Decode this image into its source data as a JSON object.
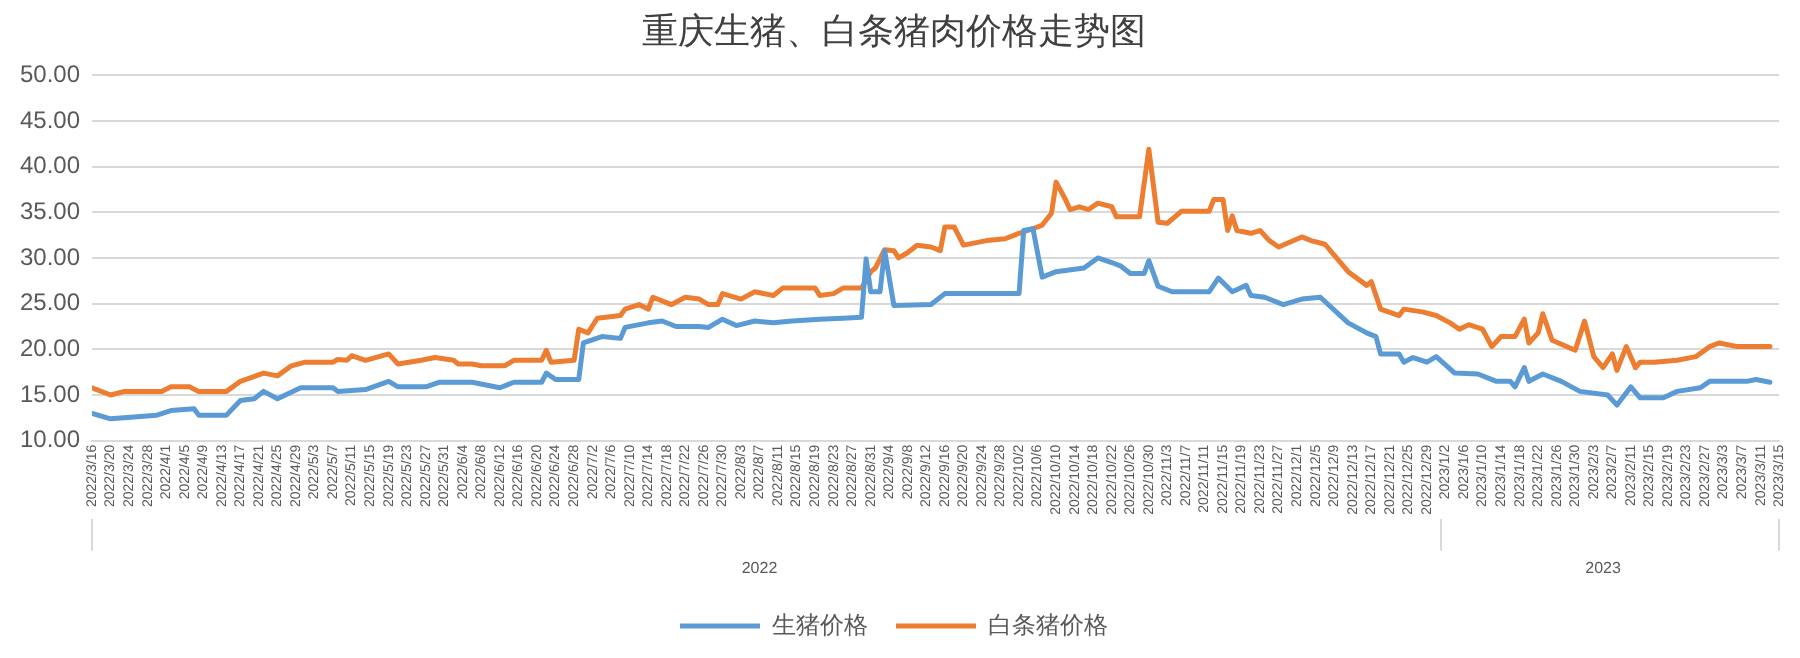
{
  "chart_data": {
    "type": "line",
    "title": "重庆生猪、白条猪肉价格走势图",
    "series": [
      {
        "name": "生猪价格",
        "color": "#5b9bd5",
        "x": [
          "2022-03-16",
          "2022-03-20",
          "2022-03-30",
          "2022-04-02",
          "2022-04-07",
          "2022-04-08",
          "2022-04-14",
          "2022-04-17",
          "2022-04-20",
          "2022-04-22",
          "2022-04-25",
          "2022-04-30",
          "2022-05-07",
          "2022-05-08",
          "2022-05-14",
          "2022-05-19",
          "2022-05-21",
          "2022-05-27",
          "2022-05-30",
          "2022-06-06",
          "2022-06-12",
          "2022-06-15",
          "2022-06-21",
          "2022-06-22",
          "2022-06-24",
          "2022-06-29",
          "2022-06-30",
          "2022-07-04",
          "2022-07-08",
          "2022-07-09",
          "2022-07-14",
          "2022-07-17",
          "2022-07-20",
          "2022-07-25",
          "2022-07-27",
          "2022-07-30",
          "2022-08-02",
          "2022-08-06",
          "2022-08-10",
          "2022-08-14",
          "2022-08-20",
          "2022-08-25",
          "2022-08-29",
          "2022-08-30",
          "2022-08-31",
          "2022-09-02",
          "2022-09-03",
          "2022-09-05",
          "2022-09-13",
          "2022-09-16",
          "2022-10-02",
          "2022-10-03",
          "2022-10-05",
          "2022-10-07",
          "2022-10-10",
          "2022-10-16",
          "2022-10-19",
          "2022-10-22",
          "2022-10-24",
          "2022-10-26",
          "2022-10-29",
          "2022-10-30",
          "2022-11-01",
          "2022-11-04",
          "2022-11-12",
          "2022-11-14",
          "2022-11-17",
          "2022-11-20",
          "2022-11-21",
          "2022-11-24",
          "2022-11-28",
          "2022-12-02",
          "2022-12-06",
          "2022-12-12",
          "2022-12-16",
          "2022-12-18",
          "2022-12-19",
          "2022-12-23",
          "2022-12-24",
          "2022-12-26",
          "2022-12-29",
          "2022-12-31",
          "2023-01-04",
          "2023-01-09",
          "2023-01-13",
          "2023-01-16",
          "2023-01-17",
          "2023-01-19",
          "2023-01-20",
          "2023-01-23",
          "2023-01-27",
          "2023-01-31",
          "2023-02-06",
          "2023-02-08",
          "2023-02-11",
          "2023-02-13",
          "2023-02-18",
          "2023-02-21",
          "2023-02-26",
          "2023-02-28",
          "2023-03-08",
          "2023-03-10",
          "2023-03-13"
        ],
        "values": [
          13.0,
          12.4,
          12.8,
          13.3,
          13.5,
          12.8,
          12.8,
          14.4,
          14.6,
          15.4,
          14.6,
          15.8,
          15.8,
          15.4,
          15.6,
          16.5,
          15.9,
          15.9,
          16.4,
          16.4,
          15.8,
          16.4,
          16.4,
          17.4,
          16.7,
          16.7,
          20.7,
          21.4,
          21.2,
          22.4,
          22.9,
          23.1,
          22.5,
          22.5,
          22.4,
          23.3,
          22.6,
          23.1,
          22.9,
          23.1,
          23.3,
          23.4,
          23.5,
          29.9,
          26.3,
          26.3,
          30.8,
          24.8,
          24.9,
          26.1,
          26.1,
          33.0,
          33.2,
          27.9,
          28.5,
          28.9,
          30.0,
          29.5,
          29.1,
          28.3,
          28.3,
          29.7,
          26.9,
          26.3,
          26.3,
          27.8,
          26.3,
          27.0,
          25.9,
          25.7,
          24.9,
          25.5,
          25.7,
          22.9,
          21.8,
          21.4,
          19.5,
          19.5,
          18.6,
          19.1,
          18.6,
          19.2,
          17.4,
          17.3,
          16.5,
          16.5,
          15.9,
          18.0,
          16.5,
          17.3,
          16.5,
          15.4,
          15.0,
          13.9,
          15.9,
          14.7,
          14.7,
          15.4,
          15.8,
          16.5,
          16.5,
          16.7,
          16.4
        ]
      },
      {
        "name": "白条猪价格",
        "color": "#ed7d31",
        "x": [
          "2022-03-16",
          "2022-03-20",
          "2022-03-23",
          "2022-03-31",
          "2022-04-02",
          "2022-04-06",
          "2022-04-08",
          "2022-04-14",
          "2022-04-17",
          "2022-04-22",
          "2022-04-25",
          "2022-04-28",
          "2022-05-01",
          "2022-05-07",
          "2022-05-08",
          "2022-05-10",
          "2022-05-11",
          "2022-05-14",
          "2022-05-19",
          "2022-05-21",
          "2022-05-26",
          "2022-05-29",
          "2022-06-02",
          "2022-06-03",
          "2022-06-06",
          "2022-06-08",
          "2022-06-13",
          "2022-06-15",
          "2022-06-21",
          "2022-06-22",
          "2022-06-23",
          "2022-06-28",
          "2022-06-29",
          "2022-07-01",
          "2022-07-03",
          "2022-07-08",
          "2022-07-09",
          "2022-07-12",
          "2022-07-14",
          "2022-07-15",
          "2022-07-19",
          "2022-07-22",
          "2022-07-25",
          "2022-07-27",
          "2022-07-29",
          "2022-07-30",
          "2022-08-03",
          "2022-08-06",
          "2022-08-10",
          "2022-08-12",
          "2022-08-19",
          "2022-08-20",
          "2022-08-23",
          "2022-08-25",
          "2022-08-29",
          "2022-08-31",
          "2022-09-01",
          "2022-09-03",
          "2022-09-05",
          "2022-09-06",
          "2022-09-08",
          "2022-09-10",
          "2022-09-13",
          "2022-09-15",
          "2022-09-16",
          "2022-09-18",
          "2022-09-20",
          "2022-09-25",
          "2022-09-29",
          "2022-10-02",
          "2022-10-05",
          "2022-10-07",
          "2022-10-09",
          "2022-10-10",
          "2022-10-12",
          "2022-10-13",
          "2022-10-15",
          "2022-10-17",
          "2022-10-19",
          "2022-10-22",
          "2022-10-23",
          "2022-10-28",
          "2022-10-30",
          "2022-11-01",
          "2022-11-03",
          "2022-11-06",
          "2022-11-12",
          "2022-11-13",
          "2022-11-15",
          "2022-11-16",
          "2022-11-17",
          "2022-11-18",
          "2022-11-21",
          "2022-11-23",
          "2022-11-25",
          "2022-11-27",
          "2022-12-02",
          "2022-12-04",
          "2022-12-07",
          "2022-12-12",
          "2022-12-16",
          "2022-12-17",
          "2022-12-19",
          "2022-12-23",
          "2022-12-24",
          "2022-12-28",
          "2022-12-31",
          "2023-01-03",
          "2023-01-05",
          "2023-01-07",
          "2023-01-10",
          "2023-01-12",
          "2023-01-14",
          "2023-01-17",
          "2023-01-19",
          "2023-01-20",
          "2023-01-22",
          "2023-01-23",
          "2023-01-25",
          "2023-01-30",
          "2023-02-01",
          "2023-02-03",
          "2023-02-05",
          "2023-02-07",
          "2023-02-08",
          "2023-02-10",
          "2023-02-12",
          "2023-02-13",
          "2023-02-16",
          "2023-02-21",
          "2023-02-25",
          "2023-02-28",
          "2023-03-02",
          "2023-03-06",
          "2023-03-11",
          "2023-03-13"
        ],
        "values": [
          15.8,
          15.0,
          15.4,
          15.4,
          15.9,
          15.9,
          15.4,
          15.4,
          16.5,
          17.4,
          17.1,
          18.2,
          18.6,
          18.6,
          18.9,
          18.8,
          19.3,
          18.8,
          19.5,
          18.4,
          18.8,
          19.1,
          18.8,
          18.4,
          18.4,
          18.2,
          18.2,
          18.8,
          18.8,
          19.9,
          18.6,
          18.8,
          22.2,
          21.8,
          23.4,
          23.7,
          24.4,
          24.9,
          24.4,
          25.7,
          24.9,
          25.7,
          25.5,
          24.9,
          24.9,
          26.1,
          25.5,
          26.3,
          25.9,
          26.7,
          26.7,
          25.9,
          26.1,
          26.7,
          26.7,
          28.5,
          28.9,
          30.9,
          30.8,
          30.0,
          30.6,
          31.4,
          31.2,
          30.8,
          33.4,
          33.4,
          31.4,
          31.9,
          32.1,
          32.7,
          33.2,
          33.6,
          34.9,
          38.3,
          36.4,
          35.3,
          35.6,
          35.3,
          36.0,
          35.6,
          34.5,
          34.5,
          41.9,
          33.9,
          33.8,
          35.1,
          35.1,
          36.4,
          36.4,
          33.0,
          34.6,
          33.0,
          32.7,
          33.0,
          31.9,
          31.2,
          32.3,
          31.9,
          31.5,
          28.5,
          27.0,
          27.4,
          24.4,
          23.7,
          24.4,
          24.1,
          23.7,
          22.9,
          22.2,
          22.7,
          22.2,
          20.3,
          21.4,
          21.4,
          23.3,
          20.7,
          21.8,
          23.9,
          21.0,
          19.9,
          23.1,
          19.2,
          18.0,
          19.5,
          17.7,
          20.3,
          18.0,
          18.6,
          18.6,
          18.8,
          19.2,
          20.3,
          20.7,
          20.3,
          20.3,
          20.3
        ]
      }
    ],
    "xlim": [
      "2022-03-16",
      "2023-03-15"
    ],
    "xticks": [
      {
        "value": "2022-03-16",
        "label": "2022/3/16"
      },
      {
        "value": "2022-03-20",
        "label": "2022/3/20"
      },
      {
        "value": "2022-03-24",
        "label": "2022/3/24"
      },
      {
        "value": "2022-03-28",
        "label": "2022/3/28"
      },
      {
        "value": "2022-04-01",
        "label": "2022/4/1"
      },
      {
        "value": "2022-04-05",
        "label": "2022/4/5"
      },
      {
        "value": "2022-04-09",
        "label": "2022/4/9"
      },
      {
        "value": "2022-04-13",
        "label": "2022/4/13"
      },
      {
        "value": "2022-04-17",
        "label": "2022/4/17"
      },
      {
        "value": "2022-04-21",
        "label": "2022/4/21"
      },
      {
        "value": "2022-04-25",
        "label": "2022/4/25"
      },
      {
        "value": "2022-04-29",
        "label": "2022/4/29"
      },
      {
        "value": "2022-05-03",
        "label": "2022/5/3"
      },
      {
        "value": "2022-05-07",
        "label": "2022/5/7"
      },
      {
        "value": "2022-05-11",
        "label": "2022/5/11"
      },
      {
        "value": "2022-05-15",
        "label": "2022/5/15"
      },
      {
        "value": "2022-05-19",
        "label": "2022/5/19"
      },
      {
        "value": "2022-05-23",
        "label": "2022/5/23"
      },
      {
        "value": "2022-05-27",
        "label": "2022/5/27"
      },
      {
        "value": "2022-05-31",
        "label": "2022/5/31"
      },
      {
        "value": "2022-06-04",
        "label": "2022/6/4"
      },
      {
        "value": "2022-06-08",
        "label": "2022/6/8"
      },
      {
        "value": "2022-06-12",
        "label": "2022/6/12"
      },
      {
        "value": "2022-06-16",
        "label": "2022/6/16"
      },
      {
        "value": "2022-06-20",
        "label": "2022/6/20"
      },
      {
        "value": "2022-06-24",
        "label": "2022/6/24"
      },
      {
        "value": "2022-06-28",
        "label": "2022/6/28"
      },
      {
        "value": "2022-07-02",
        "label": "2022/7/2"
      },
      {
        "value": "2022-07-06",
        "label": "2022/7/6"
      },
      {
        "value": "2022-07-10",
        "label": "2022/7/10"
      },
      {
        "value": "2022-07-14",
        "label": "2022/7/14"
      },
      {
        "value": "2022-07-18",
        "label": "2022/7/18"
      },
      {
        "value": "2022-07-22",
        "label": "2022/7/22"
      },
      {
        "value": "2022-07-26",
        "label": "2022/7/26"
      },
      {
        "value": "2022-07-30",
        "label": "2022/7/30"
      },
      {
        "value": "2022-08-03",
        "label": "2022/8/3"
      },
      {
        "value": "2022-08-07",
        "label": "2022/8/7"
      },
      {
        "value": "2022-08-11",
        "label": "2022/8/11"
      },
      {
        "value": "2022-08-15",
        "label": "2022/8/15"
      },
      {
        "value": "2022-08-19",
        "label": "2022/8/19"
      },
      {
        "value": "2022-08-23",
        "label": "2022/8/23"
      },
      {
        "value": "2022-08-27",
        "label": "2022/8/27"
      },
      {
        "value": "2022-08-31",
        "label": "2022/8/31"
      },
      {
        "value": "2022-09-04",
        "label": "2022/9/4"
      },
      {
        "value": "2022-09-08",
        "label": "2022/9/8"
      },
      {
        "value": "2022-09-12",
        "label": "2022/9/12"
      },
      {
        "value": "2022-09-16",
        "label": "2022/9/16"
      },
      {
        "value": "2022-09-20",
        "label": "2022/9/20"
      },
      {
        "value": "2022-09-24",
        "label": "2022/9/24"
      },
      {
        "value": "2022-09-28",
        "label": "2022/9/28"
      },
      {
        "value": "2022-10-02",
        "label": "2022/10/2"
      },
      {
        "value": "2022-10-06",
        "label": "2022/10/6"
      },
      {
        "value": "2022-10-10",
        "label": "2022/10/10"
      },
      {
        "value": "2022-10-14",
        "label": "2022/10/14"
      },
      {
        "value": "2022-10-18",
        "label": "2022/10/18"
      },
      {
        "value": "2022-10-22",
        "label": "2022/10/22"
      },
      {
        "value": "2022-10-26",
        "label": "2022/10/26"
      },
      {
        "value": "2022-10-30",
        "label": "2022/10/30"
      },
      {
        "value": "2022-11-03",
        "label": "2022/11/3"
      },
      {
        "value": "2022-11-07",
        "label": "2022/11/7"
      },
      {
        "value": "2022-11-11",
        "label": "2022/11/11"
      },
      {
        "value": "2022-11-15",
        "label": "2022/11/15"
      },
      {
        "value": "2022-11-19",
        "label": "2022/11/19"
      },
      {
        "value": "2022-11-23",
        "label": "2022/11/23"
      },
      {
        "value": "2022-11-27",
        "label": "2022/11/27"
      },
      {
        "value": "2022-12-01",
        "label": "2022/12/1"
      },
      {
        "value": "2022-12-05",
        "label": "2022/12/5"
      },
      {
        "value": "2022-12-09",
        "label": "2022/12/9"
      },
      {
        "value": "2022-12-13",
        "label": "2022/12/13"
      },
      {
        "value": "2022-12-17",
        "label": "2022/12/17"
      },
      {
        "value": "2022-12-21",
        "label": "2022/12/21"
      },
      {
        "value": "2022-12-25",
        "label": "2022/12/25"
      },
      {
        "value": "2022-12-29",
        "label": "2022/12/29"
      },
      {
        "value": "2023-01-02",
        "label": "2023/1/2"
      },
      {
        "value": "2023-01-06",
        "label": "2023/1/6"
      },
      {
        "value": "2023-01-10",
        "label": "2023/1/10"
      },
      {
        "value": "2023-01-14",
        "label": "2023/1/14"
      },
      {
        "value": "2023-01-18",
        "label": "2023/1/18"
      },
      {
        "value": "2023-01-22",
        "label": "2023/1/22"
      },
      {
        "value": "2023-01-26",
        "label": "2023/1/26"
      },
      {
        "value": "2023-01-30",
        "label": "2023/1/30"
      },
      {
        "value": "2023-02-03",
        "label": "2023/2/3"
      },
      {
        "value": "2023-02-07",
        "label": "2023/2/7"
      },
      {
        "value": "2023-02-11",
        "label": "2023/2/11"
      },
      {
        "value": "2023-02-15",
        "label": "2023/2/15"
      },
      {
        "value": "2023-02-19",
        "label": "2023/2/19"
      },
      {
        "value": "2023-02-23",
        "label": "2023/2/23"
      },
      {
        "value": "2023-02-27",
        "label": "2023/2/27"
      },
      {
        "value": "2023-03-03",
        "label": "2023/3/3"
      },
      {
        "value": "2023-03-07",
        "label": "2023/3/7"
      },
      {
        "value": "2023-03-11",
        "label": "2023/3/11"
      },
      {
        "value": "2023-03-15",
        "label": "2023/3/15"
      }
    ],
    "x2lim": [
      "2022-03-16",
      "2023-03-15"
    ],
    "x2ticks": [
      {
        "value": "2022-03-16",
        "label": null
      },
      {
        "value": "2022-08-07",
        "label": "2022"
      },
      {
        "value": "2023-01-01",
        "label": null
      },
      {
        "value": "2023-02-05",
        "label": "2023"
      },
      {
        "value": "2023-03-15",
        "label": null
      }
    ],
    "ylim": [
      10,
      50
    ],
    "yticks": [
      {
        "value": 10,
        "label": "10.00"
      },
      {
        "value": 15,
        "label": "15.00"
      },
      {
        "value": 20,
        "label": "20.00"
      },
      {
        "value": 25,
        "label": "25.00"
      },
      {
        "value": 30,
        "label": "30.00"
      },
      {
        "value": 35,
        "label": "35.00"
      },
      {
        "value": 40,
        "label": "40.00"
      },
      {
        "value": 45,
        "label": "45.00"
      },
      {
        "value": 50,
        "label": "50.00"
      }
    ],
    "grid": "y",
    "legend": "bottom",
    "marker": "none",
    "line_style": "solid"
  }
}
